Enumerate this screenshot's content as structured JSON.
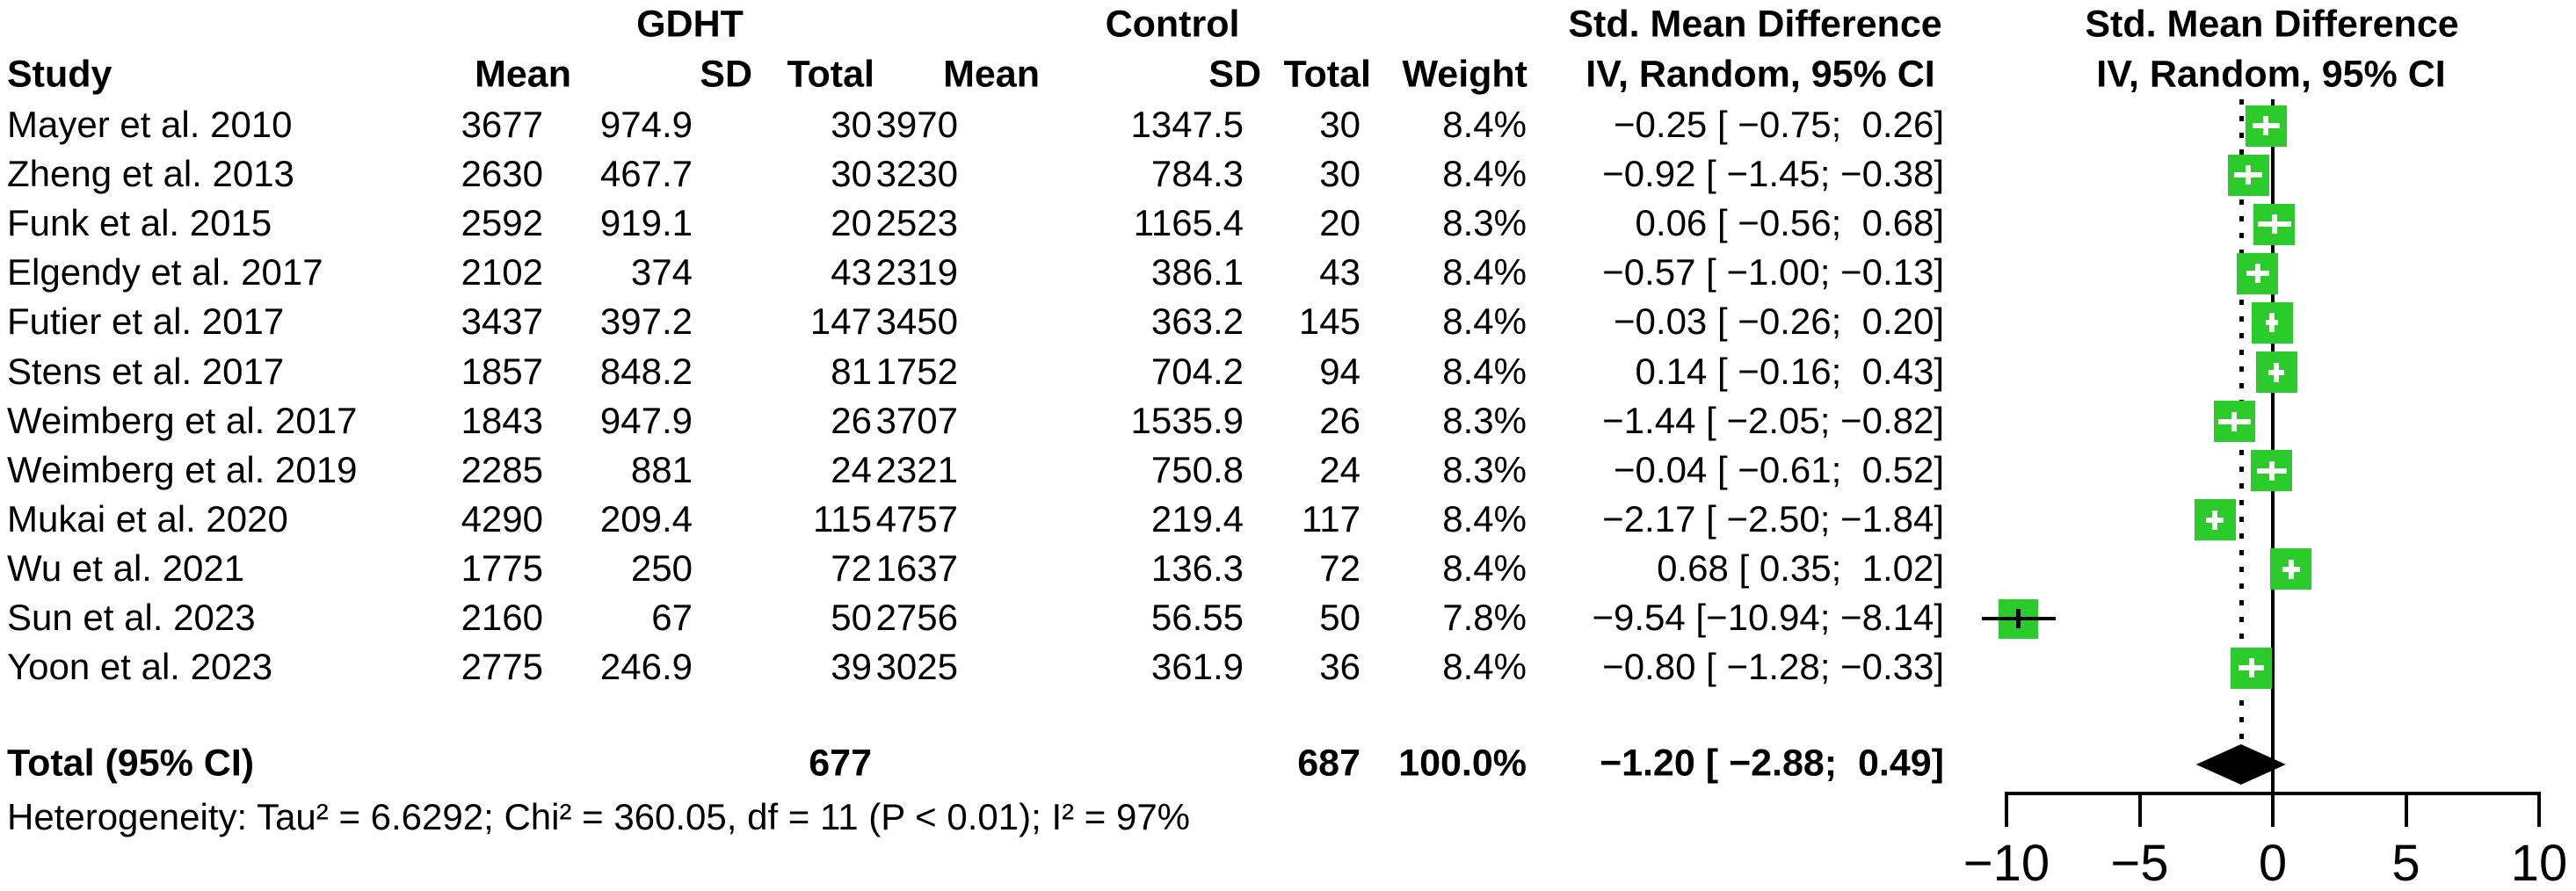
{
  "table": {
    "header_groups": [
      {
        "label": "GDHT"
      },
      {
        "label": "Control"
      },
      {
        "label": "Std. Mean Difference"
      },
      {
        "label": "Std. Mean Difference"
      }
    ],
    "columns": {
      "study": "Study",
      "gdht_mean": "Mean",
      "gdht_sd": "SD",
      "gdht_total": "Total",
      "ctrl_mean": "Mean",
      "ctrl_sd": "SD",
      "ctrl_total": "Total",
      "weight": "Weight",
      "ci_text": "IV, Random, 95% CI",
      "ci_plot": "IV, Random, 95% CI"
    },
    "rows": [
      {
        "study": "Mayer et al. 2010",
        "gdht_mean": "3677",
        "gdht_sd": "974.9",
        "gdht_total": "30",
        "ctrl_mean": "3970",
        "ctrl_sd": "1347.5",
        "ctrl_total": "30",
        "weight": "8.4%",
        "ci": "−0.25 [ −0.75;  0.26]"
      },
      {
        "study": "Zheng et al. 2013",
        "gdht_mean": "2630",
        "gdht_sd": "467.7",
        "gdht_total": "30",
        "ctrl_mean": "3230",
        "ctrl_sd": "784.3",
        "ctrl_total": "30",
        "weight": "8.4%",
        "ci": "−0.92 [ −1.45; −0.38]"
      },
      {
        "study": "Funk et al. 2015",
        "gdht_mean": "2592",
        "gdht_sd": "919.1",
        "gdht_total": "20",
        "ctrl_mean": "2523",
        "ctrl_sd": "1165.4",
        "ctrl_total": "20",
        "weight": "8.3%",
        "ci": "0.06 [ −0.56;  0.68]"
      },
      {
        "study": "Elgendy et al. 2017",
        "gdht_mean": "2102",
        "gdht_sd": "374",
        "gdht_total": "43",
        "ctrl_mean": "2319",
        "ctrl_sd": "386.1",
        "ctrl_total": "43",
        "weight": "8.4%",
        "ci": "−0.57 [ −1.00; −0.13]"
      },
      {
        "study": "Futier et al. 2017",
        "gdht_mean": "3437",
        "gdht_sd": "397.2",
        "gdht_total": "147",
        "ctrl_mean": "3450",
        "ctrl_sd": "363.2",
        "ctrl_total": "145",
        "weight": "8.4%",
        "ci": "−0.03 [ −0.26;  0.20]"
      },
      {
        "study": "Stens et al. 2017",
        "gdht_mean": "1857",
        "gdht_sd": "848.2",
        "gdht_total": "81",
        "ctrl_mean": "1752",
        "ctrl_sd": "704.2",
        "ctrl_total": "94",
        "weight": "8.4%",
        "ci": "0.14 [ −0.16;  0.43]"
      },
      {
        "study": "Weimberg et al. 2017",
        "gdht_mean": "1843",
        "gdht_sd": "947.9",
        "gdht_total": "26",
        "ctrl_mean": "3707",
        "ctrl_sd": "1535.9",
        "ctrl_total": "26",
        "weight": "8.3%",
        "ci": "−1.44 [ −2.05; −0.82]"
      },
      {
        "study": "Weimberg et al. 2019",
        "gdht_mean": "2285",
        "gdht_sd": "881",
        "gdht_total": "24",
        "ctrl_mean": "2321",
        "ctrl_sd": "750.8",
        "ctrl_total": "24",
        "weight": "8.3%",
        "ci": "−0.04 [ −0.61;  0.52]"
      },
      {
        "study": "Mukai et al. 2020",
        "gdht_mean": "4290",
        "gdht_sd": "209.4",
        "gdht_total": "115",
        "ctrl_mean": "4757",
        "ctrl_sd": "219.4",
        "ctrl_total": "117",
        "weight": "8.4%",
        "ci": "−2.17 [ −2.50; −1.84]"
      },
      {
        "study": "Wu et al. 2021",
        "gdht_mean": "1775",
        "gdht_sd": "250",
        "gdht_total": "72",
        "ctrl_mean": "1637",
        "ctrl_sd": "136.3",
        "ctrl_total": "72",
        "weight": "8.4%",
        "ci": "0.68 [ 0.35;  1.02]"
      },
      {
        "study": "Sun et al. 2023",
        "gdht_mean": "2160",
        "gdht_sd": "67",
        "gdht_total": "50",
        "ctrl_mean": "2756",
        "ctrl_sd": "56.55",
        "ctrl_total": "50",
        "weight": "7.8%",
        "ci": "−9.54 [−10.94; −8.14]"
      },
      {
        "study": "Yoon et al. 2023",
        "gdht_mean": "2775",
        "gdht_sd": "246.9",
        "gdht_total": "39",
        "ctrl_mean": "3025",
        "ctrl_sd": "361.9",
        "ctrl_total": "36",
        "weight": "8.4%",
        "ci": "−0.80 [ −1.28; −0.33]"
      }
    ],
    "total_row": {
      "label": "Total (95% CI)",
      "gdht_total": "677",
      "ctrl_total": "687",
      "weight": "100.0%",
      "ci": "−1.20 [ −2.88;  0.49]"
    },
    "heterogeneity": "Heterogeneity: Tau² = 6.6292; Chi² = 360.05, df = 11 (P < 0.01); I² = 97%"
  },
  "chart_data": {
    "type": "scatter",
    "subtype": "forest-plot",
    "title": "Std. Mean Difference, IV, Random, 95% CI",
    "xlabel": "",
    "x_axis": {
      "range": [
        -10,
        10
      ],
      "ticks": [
        -10,
        -5,
        0,
        5,
        10
      ]
    },
    "zero_line_x": 0,
    "overall_dotted_line_x": -1.2,
    "marker_color": "#2BCB2B",
    "studies": [
      {
        "label": "Mayer et al. 2010",
        "smd": -0.25,
        "lower": -0.75,
        "upper": 0.26,
        "weight_pct": 8.4
      },
      {
        "label": "Zheng et al. 2013",
        "smd": -0.92,
        "lower": -1.45,
        "upper": -0.38,
        "weight_pct": 8.4
      },
      {
        "label": "Funk et al. 2015",
        "smd": 0.06,
        "lower": -0.56,
        "upper": 0.68,
        "weight_pct": 8.3
      },
      {
        "label": "Elgendy et al. 2017",
        "smd": -0.57,
        "lower": -1.0,
        "upper": -0.13,
        "weight_pct": 8.4
      },
      {
        "label": "Futier et al. 2017",
        "smd": -0.03,
        "lower": -0.26,
        "upper": 0.2,
        "weight_pct": 8.4
      },
      {
        "label": "Stens et al. 2017",
        "smd": 0.14,
        "lower": -0.16,
        "upper": 0.43,
        "weight_pct": 8.4
      },
      {
        "label": "Weimberg et al. 2017",
        "smd": -1.44,
        "lower": -2.05,
        "upper": -0.82,
        "weight_pct": 8.3
      },
      {
        "label": "Weimberg et al. 2019",
        "smd": -0.04,
        "lower": -0.61,
        "upper": 0.52,
        "weight_pct": 8.3
      },
      {
        "label": "Mukai et al. 2020",
        "smd": -2.17,
        "lower": -2.5,
        "upper": -1.84,
        "weight_pct": 8.4
      },
      {
        "label": "Wu et al. 2021",
        "smd": 0.68,
        "lower": 0.35,
        "upper": 1.02,
        "weight_pct": 8.4
      },
      {
        "label": "Sun et al. 2023",
        "smd": -9.54,
        "lower": -10.94,
        "upper": -8.14,
        "weight_pct": 7.8
      },
      {
        "label": "Yoon et al. 2023",
        "smd": -0.8,
        "lower": -1.28,
        "upper": -0.33,
        "weight_pct": 8.4
      }
    ],
    "overall": {
      "smd": -1.2,
      "lower": -2.88,
      "upper": 0.49,
      "weight_pct": 100.0
    }
  }
}
